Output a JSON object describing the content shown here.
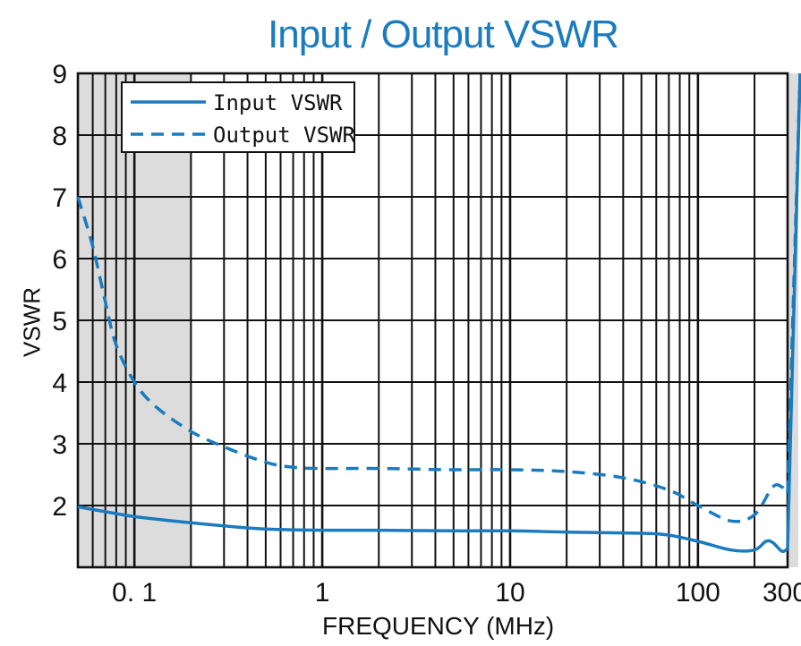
{
  "chart_data": {
    "type": "line",
    "title": "Input / Output VSWR",
    "xlabel": "FREQUENCY (MHz)",
    "ylabel": "VSWR",
    "xscale": "log",
    "xlim": [
      0.05,
      300
    ],
    "ylim": [
      1,
      9
    ],
    "grid": true,
    "legend_position": "top-left",
    "xtick_labels": [
      {
        "value": 0.1,
        "label": "0. 1"
      },
      {
        "value": 1,
        "label": "1"
      },
      {
        "value": 10,
        "label": "10"
      },
      {
        "value": 100,
        "label": "100"
      },
      {
        "value": 300,
        "label": "300"
      }
    ],
    "ytick_labels": [
      {
        "value": 2,
        "label": "2"
      },
      {
        "value": 3,
        "label": "3"
      },
      {
        "value": 4,
        "label": "4"
      },
      {
        "value": 5,
        "label": "5"
      },
      {
        "value": 6,
        "label": "6"
      },
      {
        "value": 7,
        "label": "7"
      },
      {
        "value": 8,
        "label": "8"
      },
      {
        "value": 9,
        "label": "9"
      }
    ],
    "shaded_regions": [
      {
        "from": 0.05,
        "to": 0.2
      },
      {
        "from": 300,
        "to": 300
      }
    ],
    "series": [
      {
        "name": "Input VSWR",
        "style": "solid",
        "color": "#1a7bbf",
        "x": [
          0.05,
          0.07,
          0.1,
          0.15,
          0.2,
          0.3,
          0.5,
          1,
          2,
          5,
          10,
          20,
          50,
          70,
          100,
          150,
          200,
          230,
          250,
          280,
          300
        ],
        "y": [
          1.98,
          1.9,
          1.82,
          1.76,
          1.72,
          1.67,
          1.62,
          1.6,
          1.6,
          1.59,
          1.59,
          1.57,
          1.55,
          1.52,
          1.42,
          1.28,
          1.28,
          1.42,
          1.4,
          1.26,
          1.3
        ]
      },
      {
        "name": "Output VSWR",
        "style": "dashed",
        "color": "#1a7bbf",
        "x": [
          0.05,
          0.06,
          0.07,
          0.08,
          0.1,
          0.13,
          0.2,
          0.3,
          0.5,
          0.7,
          1,
          2,
          5,
          10,
          20,
          40,
          70,
          100,
          150,
          200,
          250,
          280,
          300
        ],
        "y": [
          7.0,
          6.2,
          5.3,
          4.6,
          4.0,
          3.6,
          3.2,
          2.95,
          2.7,
          2.62,
          2.6,
          2.6,
          2.58,
          2.58,
          2.55,
          2.45,
          2.25,
          2.0,
          1.75,
          1.85,
          2.3,
          2.3,
          2.2
        ]
      }
    ]
  }
}
